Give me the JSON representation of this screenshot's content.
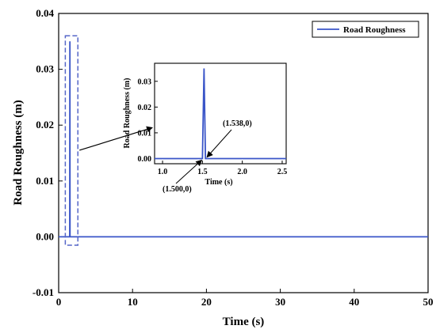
{
  "chart_data": [
    {
      "type": "line",
      "xlabel": "Time (s)",
      "ylabel": "Road Roughness (m)",
      "xlim": [
        0,
        50
      ],
      "ylim": [
        -0.01,
        0.04
      ],
      "xticks": [
        0,
        10,
        20,
        30,
        40,
        50
      ],
      "yticks": [
        -0.01,
        0.0,
        0.01,
        0.02,
        0.03,
        0.04
      ],
      "xtick_labels": [
        "0",
        "10",
        "20",
        "30",
        "40",
        "50"
      ],
      "ytick_labels": [
        "-0.01",
        "0.00",
        "0.01",
        "0.02",
        "0.03",
        "0.04"
      ],
      "grid": false,
      "legend": "top-right",
      "series": [
        {
          "name": "Road Roughness",
          "color": "#3a55c8",
          "x": [
            0,
            1.5,
            1.52,
            1.538,
            50
          ],
          "y": [
            0,
            0,
            0.035,
            0,
            0
          ]
        }
      ],
      "highlight_box": {
        "x": [
          0.9,
          2.6
        ],
        "y": [
          -0.0015,
          0.036
        ]
      }
    },
    {
      "type": "line",
      "role": "inset",
      "xlabel": "Time (s)",
      "ylabel": "Road Roughness (m)",
      "xlim": [
        0.9,
        2.55
      ],
      "ylim": [
        -0.002,
        0.037
      ],
      "xticks": [
        1.0,
        1.5,
        2.0,
        2.5
      ],
      "yticks": [
        0.0,
        0.01,
        0.02,
        0.03
      ],
      "xtick_labels": [
        "1.0",
        "1.5",
        "2.0",
        "2.5"
      ],
      "ytick_labels": [
        "0.00",
        "0.01",
        "0.02",
        "0.03"
      ],
      "series": [
        {
          "color": "#3a55c8",
          "x": [
            0.9,
            1.5,
            1.52,
            1.538,
            2.55
          ],
          "y": [
            0,
            0,
            0.035,
            0,
            0
          ]
        }
      ],
      "annotations": [
        {
          "text": "(1.500,0)",
          "x": 1.5,
          "y": 0
        },
        {
          "text": "(1.538,0)",
          "x": 1.538,
          "y": 0
        }
      ]
    }
  ]
}
